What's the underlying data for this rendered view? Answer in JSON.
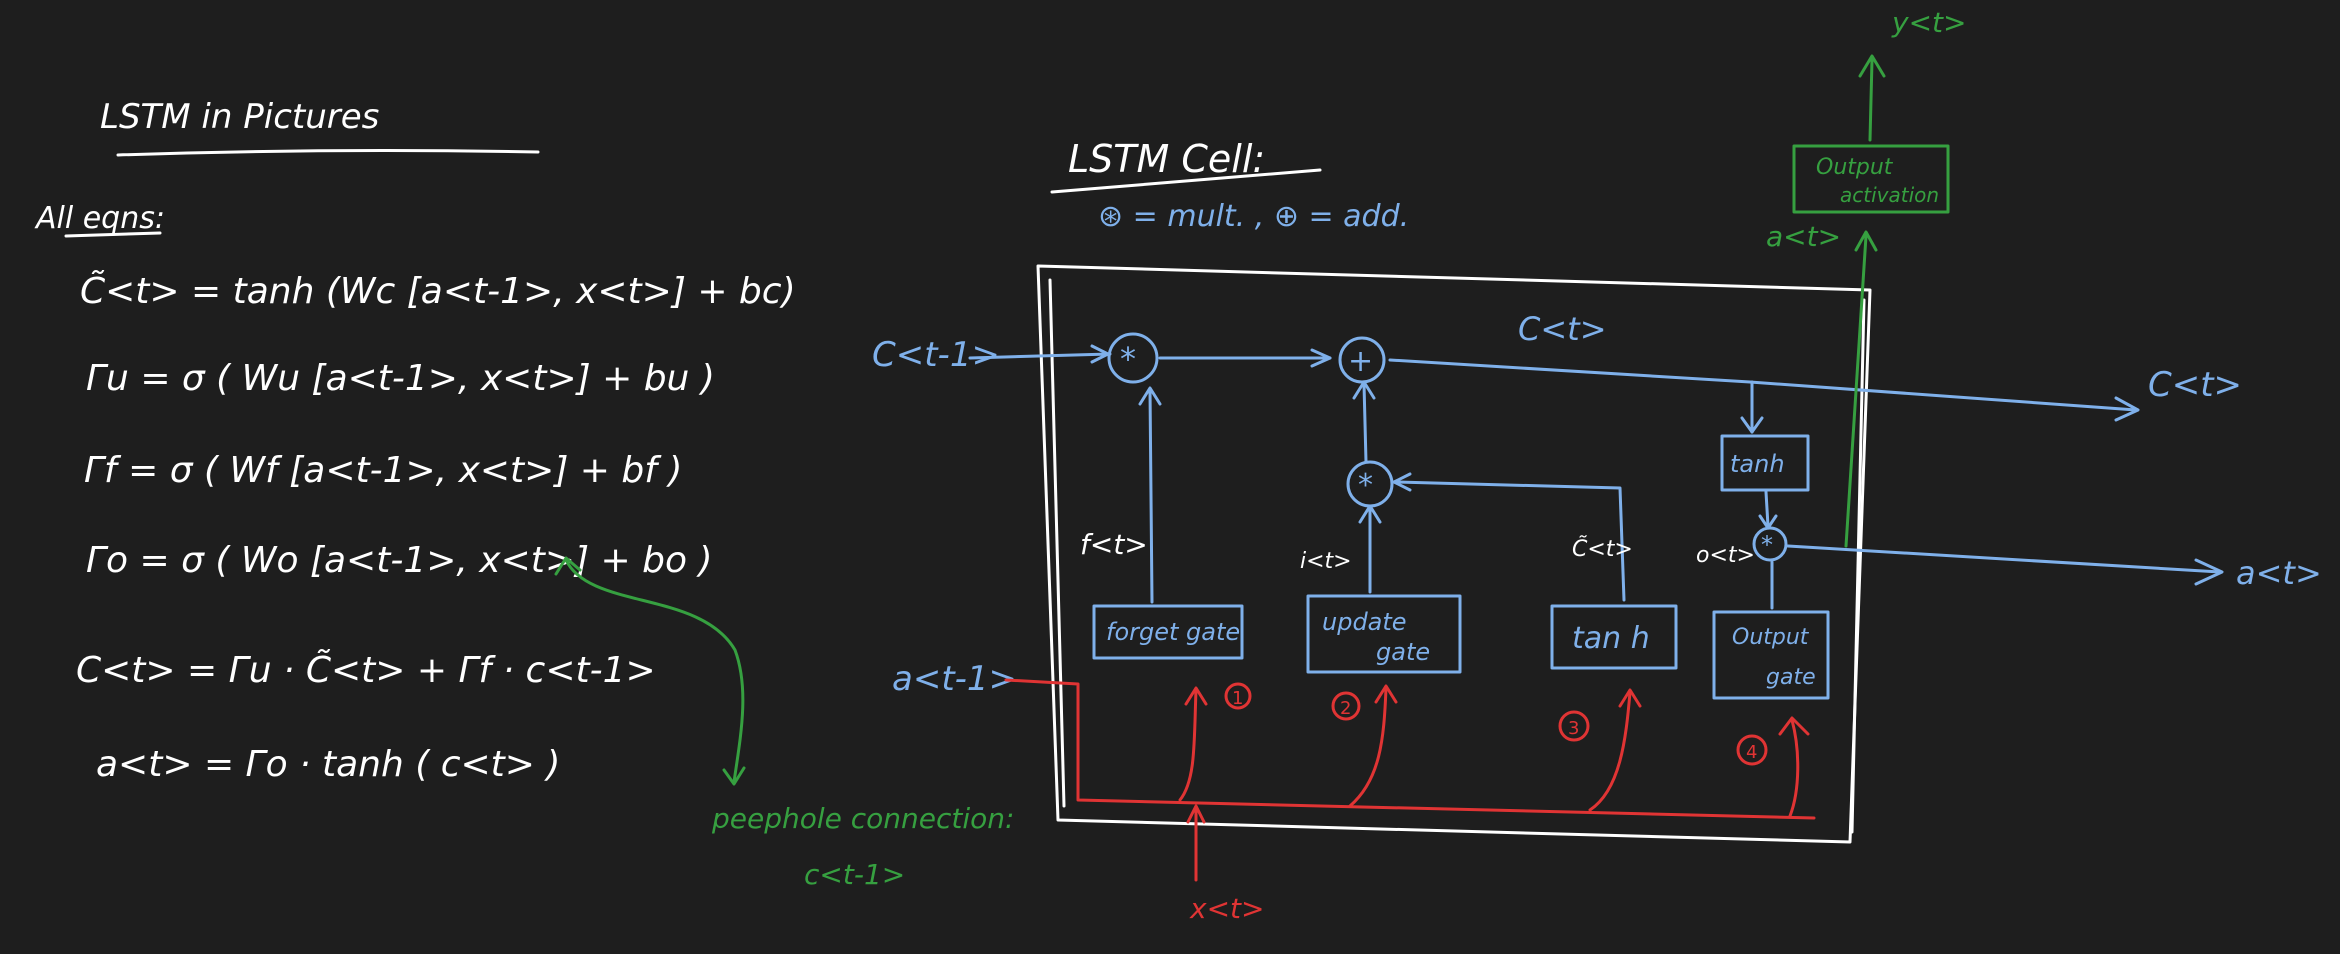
{
  "left": {
    "title": "LSTM   in  Pictures",
    "subtitle": "All eqns:",
    "equations": [
      "C̃<t> = tanh (Wc [a<t-1>, x<t>] + bc)",
      "Γu  =  σ ( Wu [a<t-1>, x<t>] + bu )",
      "Γf  =  σ ( Wf [a<t-1>, x<t>] + bf )",
      "Γo =  σ ( Wo [a<t-1>, x<t>]  +  bo )",
      "C<t>  =  Γu · C̃<t> + Γf · c<t-1>",
      "a<t>  =  Γo · tanh ( c<t> )"
    ],
    "peephole_line1": "peephole connection:",
    "peephole_line2": "c<t-1>"
  },
  "cell": {
    "title": "LSTM  Cell:",
    "legend": "⊛ = mult. , ⊕ = add.",
    "inputs": {
      "c_prev": "C<t-1>",
      "a_prev": "a<t-1>",
      "x": "x<t>"
    },
    "outputs": {
      "c_top": "C<t>",
      "c_out": "C<t>",
      "a_out": "a<t>",
      "a_up": "a<t>",
      "y": "y<t>"
    },
    "gates": {
      "forget": "forget gate",
      "update_line1": "update",
      "update_line2": "gate",
      "tanh": "tan h",
      "output_line1": "Output",
      "output_line2": "gate",
      "tanh_small": "tanh",
      "output_activation_line1": "Output",
      "output_activation_line2": "activation"
    },
    "gate_signals": {
      "f": "f<t>",
      "i": "i<t>",
      "c_tilde": "C̃<t>",
      "o": "o<t>"
    },
    "steps": [
      "1",
      "2",
      "3",
      "4"
    ]
  }
}
